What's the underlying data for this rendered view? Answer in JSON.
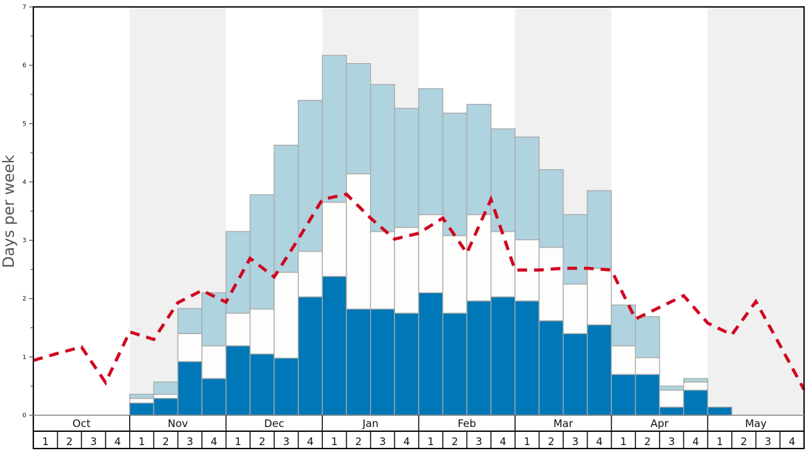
{
  "chart_data": {
    "type": "bar",
    "stacked": true,
    "title": "",
    "ylabel": "Days per week",
    "xlabel": "",
    "ylim": [
      0,
      7
    ],
    "yticks": [
      "0",
      "1",
      "2",
      "3",
      "4",
      "5",
      "6",
      "7"
    ],
    "months": [
      "Oct",
      "Nov",
      "Dec",
      "Jan",
      "Feb",
      "Mar",
      "Apr",
      "May"
    ],
    "week_labels": [
      "1",
      "2",
      "3",
      "4"
    ],
    "shaded_months": [
      "Nov",
      "Jan",
      "Mar",
      "May"
    ],
    "colors": {
      "shade": "#f0f0f0",
      "bar_border": "#a9a9a9",
      "line": "#d0061f"
    },
    "series": [
      {
        "color": "#0077b6",
        "values": [
          0,
          0,
          0,
          0,
          0.21,
          0.29,
          0.92,
          0.63,
          1.19,
          1.05,
          0.98,
          2.03,
          2.38,
          1.82,
          1.82,
          1.75,
          2.1,
          1.75,
          1.96,
          2.03,
          1.96,
          1.62,
          1.4,
          1.55,
          0.7,
          0.7,
          0.14,
          0.43,
          0.14,
          0,
          0,
          0
        ]
      },
      {
        "color": "#fdfdfb",
        "values": [
          0,
          0,
          0,
          0,
          0.08,
          0.07,
          0.48,
          0.56,
          0.56,
          0.77,
          1.47,
          0.78,
          1.27,
          2.32,
          1.33,
          1.47,
          1.34,
          1.33,
          1.48,
          1.12,
          1.05,
          1.26,
          0.85,
          0.97,
          0.49,
          0.29,
          0.29,
          0.14,
          0,
          0,
          0,
          0
        ]
      },
      {
        "color": "#afd3df",
        "values": [
          0,
          0,
          0,
          0,
          0.07,
          0.21,
          0.43,
          0.91,
          1.4,
          1.96,
          2.18,
          2.59,
          2.52,
          1.89,
          2.52,
          2.04,
          2.16,
          2.1,
          1.89,
          1.76,
          1.76,
          1.33,
          1.19,
          1.33,
          0.7,
          0.7,
          0.07,
          0.06,
          0,
          0,
          0,
          0
        ]
      }
    ],
    "line": {
      "style": "dashed",
      "values_at_week_boundaries": [
        0.94,
        1.06,
        1.17,
        0.56,
        1.43,
        1.3,
        1.93,
        2.14,
        1.94,
        2.69,
        2.37,
        3.02,
        3.7,
        3.79,
        3.38,
        3.02,
        3.12,
        3.38,
        2.78,
        3.7,
        2.49,
        2.49,
        2.52,
        2.52,
        2.49,
        1.65,
        1.85,
        2.05,
        1.58,
        1.38,
        1.95,
        1.2,
        0.44
      ]
    }
  }
}
